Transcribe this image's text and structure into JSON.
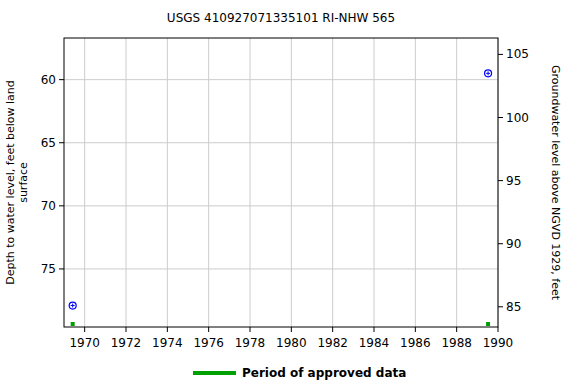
{
  "chart_data": {
    "type": "scatter",
    "title": "USGS 410927071335101 RI-NHW  565",
    "ylabel": [
      "Depth to water level, feet below land",
      "surface"
    ],
    "y2label": "Groundwater level above NGVD 1929, feet",
    "xlim": [
      1969,
      1990
    ],
    "xticks": [
      1970,
      1972,
      1974,
      1976,
      1978,
      1980,
      1982,
      1984,
      1986,
      1988,
      1990
    ],
    "ylim": [
      79.6,
      56.7
    ],
    "yticks": [
      60,
      65,
      70,
      75
    ],
    "y2lim": [
      83.4,
      106.3
    ],
    "y2ticks": [
      85,
      90,
      95,
      100,
      105
    ],
    "grid": true,
    "series": [
      {
        "x": [
          1969.42,
          1989.52
        ],
        "values": [
          77.9,
          59.5
        ],
        "color": "#0000ff",
        "marker": "circle"
      }
    ],
    "approved_periods": {
      "name": "Period of approved data",
      "color": "#00a000",
      "x": [
        1969.42,
        1989.52
      ]
    }
  }
}
